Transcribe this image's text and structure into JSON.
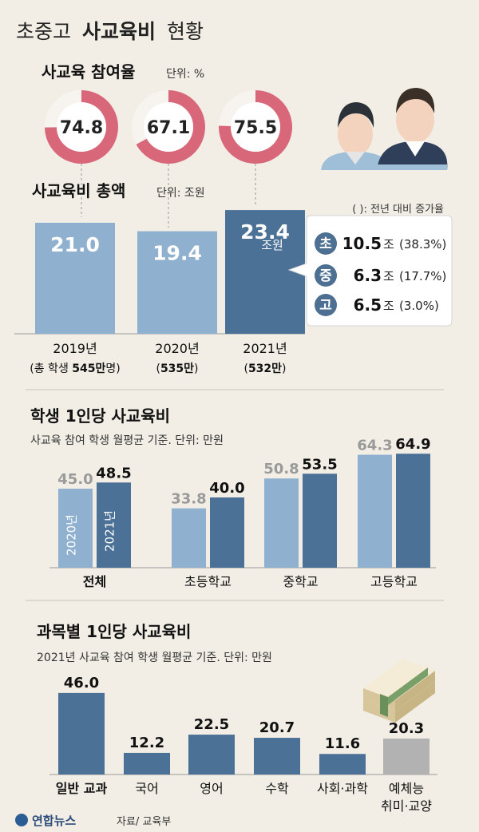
{
  "page": {
    "title_light_1": "초중고",
    "title_bold": "사교육비",
    "title_light_2": "현황",
    "source": "자료/ 교육부",
    "logo_text": "연합뉴스"
  },
  "participation": {
    "title": "사교육 참여율",
    "unit": "단위: %"
  },
  "total": {
    "title": "사교육비 총액",
    "unit": "단위: 조원",
    "bar_unit": "조원",
    "legend_note": "( ): 전년 대비 증가율",
    "breakdown": [
      {
        "badge": "초",
        "value": "10.5",
        "unit": "조",
        "pct": "(38.3%)"
      },
      {
        "badge": "중",
        "value": "6.3",
        "unit": "조",
        "pct": "(17.7%)"
      },
      {
        "badge": "고",
        "value": "6.5",
        "unit": "조",
        "pct": "(3.0%)"
      }
    ],
    "xlabels": [
      {
        "year": "2019년",
        "students_pre": "(총 학생 ",
        "students_bold": "545만",
        "students_post": "명)"
      },
      {
        "year": "2020년",
        "students_pre": "(",
        "students_bold": "535만",
        "students_post": ")"
      },
      {
        "year": "2021년",
        "students_pre": "(",
        "students_bold": "532만",
        "students_post": ")"
      }
    ]
  },
  "per_student": {
    "title": "학생 1인당 사교육비",
    "subtitle": "사교육 참여 학생 월평균 기준. 단위: 만원",
    "series_labels": [
      "2020년",
      "2021년"
    ]
  },
  "subject": {
    "title": "과목별 1인당 사교육비",
    "subtitle": "2021년 사교육 참여 학생 월평균 기준. 단위: 만원"
  },
  "colors": {
    "background": "#f2eee6",
    "light_blue": "#8fb1cf",
    "dark_blue": "#4b7196",
    "donut_red": "#d8677a",
    "gray_bar": "#b2b2b2",
    "gray_label": "#9a9a9a"
  },
  "chart_data": [
    {
      "type": "pie",
      "title": "사교육 참여율",
      "unit": "%",
      "values": [
        74.8,
        67.1,
        75.5
      ],
      "categories": [
        "2019년",
        "2020년",
        "2021년"
      ]
    },
    {
      "type": "bar",
      "title": "사교육비 총액",
      "unit": "조원",
      "categories": [
        "2019년",
        "2020년",
        "2021년"
      ],
      "values": [
        21.0,
        19.4,
        23.4
      ],
      "value_labels": [
        "21.0",
        "19.4",
        "23.4"
      ],
      "students": [
        "545만",
        "535만",
        "532만"
      ],
      "breakdown_2021": {
        "초": 10.5,
        "중": 6.3,
        "고": 6.5
      },
      "growth_2021": {
        "초": "38.3%",
        "중": "17.7%",
        "고": "3.0%"
      }
    },
    {
      "type": "bar",
      "title": "학생 1인당 사교육비",
      "unit": "만원",
      "categories": [
        "전체",
        "초등학교",
        "중학교",
        "고등학교"
      ],
      "series": [
        {
          "name": "2020년",
          "values": [
            45.0,
            33.8,
            50.8,
            64.3
          ],
          "labels": [
            "45.0",
            "33.8",
            "50.8",
            "64.3"
          ]
        },
        {
          "name": "2021년",
          "values": [
            48.5,
            40.0,
            53.5,
            64.9
          ],
          "labels": [
            "48.5",
            "40.0",
            "53.5",
            "64.9"
          ]
        }
      ]
    },
    {
      "type": "bar",
      "title": "과목별 1인당 사교육비",
      "unit": "만원",
      "categories": [
        [
          "일반 교과"
        ],
        [
          "국어"
        ],
        [
          "영어"
        ],
        [
          "수학"
        ],
        [
          "사회·과학"
        ],
        [
          "예체능",
          "취미·교양"
        ]
      ],
      "values": [
        46.0,
        12.2,
        22.5,
        20.7,
        11.6,
        20.3
      ],
      "value_labels": [
        "46.0",
        "12.2",
        "22.5",
        "20.7",
        "11.6",
        "20.3"
      ]
    }
  ]
}
